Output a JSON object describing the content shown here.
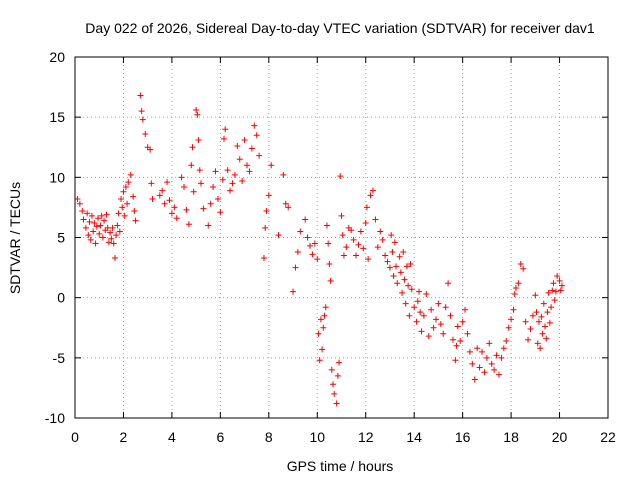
{
  "chart_data": {
    "type": "scatter",
    "title": "Day 022 of 2026, Sidereal Day-to-day VTEC variation (SDTVAR) for receiver dav1",
    "xlabel": "GPS time / hours",
    "ylabel": "SDTVAR / TECUs",
    "xlim": [
      0,
      22
    ],
    "ylim": [
      -10,
      20
    ],
    "xticks": [
      "0",
      "2",
      "4",
      "6",
      "8",
      "10",
      "12",
      "14",
      "16",
      "18",
      "20",
      "22"
    ],
    "yticks": [
      "-10",
      "-5",
      "0",
      "5",
      "10",
      "15",
      "20"
    ],
    "grid": true,
    "marker": "+",
    "series_color": "#ff0000",
    "series": [
      {
        "name": "SDTVAR",
        "points": [
          [
            0.1,
            8.2
          ],
          [
            0.2,
            7.8
          ],
          [
            0.3,
            7.2
          ],
          [
            0.35,
            6.5
          ],
          [
            0.45,
            5.8
          ],
          [
            0.5,
            7.0
          ],
          [
            0.55,
            5.2
          ],
          [
            0.6,
            6.3
          ],
          [
            0.65,
            4.8
          ],
          [
            0.7,
            6.8
          ],
          [
            0.75,
            5.5
          ],
          [
            0.8,
            6.2
          ],
          [
            0.85,
            4.5
          ],
          [
            0.9,
            5.9
          ],
          [
            0.95,
            6.6
          ],
          [
            1.0,
            5.3
          ],
          [
            1.05,
            6.0
          ],
          [
            1.1,
            6.8
          ],
          [
            1.15,
            5.0
          ],
          [
            1.2,
            6.4
          ],
          [
            1.25,
            5.6
          ],
          [
            1.3,
            6.9
          ],
          [
            1.35,
            5.8
          ],
          [
            1.4,
            4.6
          ],
          [
            1.45,
            5.4
          ],
          [
            1.5,
            4.9
          ],
          [
            1.55,
            5.8
          ],
          [
            1.6,
            4.5
          ],
          [
            1.65,
            3.3
          ],
          [
            1.7,
            5.2
          ],
          [
            1.75,
            6.0
          ],
          [
            1.8,
            7.0
          ],
          [
            1.85,
            5.5
          ],
          [
            1.9,
            8.2
          ],
          [
            1.95,
            7.5
          ],
          [
            2.0,
            8.8
          ],
          [
            2.05,
            6.8
          ],
          [
            2.1,
            9.2
          ],
          [
            2.15,
            7.8
          ],
          [
            2.2,
            9.6
          ],
          [
            2.3,
            10.2
          ],
          [
            2.4,
            8.4
          ],
          [
            2.45,
            7.2
          ],
          [
            2.5,
            6.4
          ],
          [
            2.7,
            16.8
          ],
          [
            2.75,
            15.5
          ],
          [
            2.8,
            14.8
          ],
          [
            2.9,
            13.6
          ],
          [
            3.0,
            12.5
          ],
          [
            3.1,
            12.3
          ],
          [
            3.15,
            9.5
          ],
          [
            3.2,
            8.2
          ],
          [
            3.5,
            8.5
          ],
          [
            3.6,
            8.9
          ],
          [
            3.7,
            7.8
          ],
          [
            3.8,
            9.6
          ],
          [
            3.9,
            8.1
          ],
          [
            4.0,
            7.0
          ],
          [
            4.1,
            7.5
          ],
          [
            4.2,
            6.6
          ],
          [
            4.4,
            10.0
          ],
          [
            4.5,
            9.2
          ],
          [
            4.6,
            7.3
          ],
          [
            4.7,
            6.1
          ],
          [
            4.8,
            11.0
          ],
          [
            4.85,
            12.5
          ],
          [
            4.9,
            8.8
          ],
          [
            5.0,
            15.6
          ],
          [
            5.05,
            15.2
          ],
          [
            5.1,
            13.1
          ],
          [
            5.15,
            10.6
          ],
          [
            5.2,
            9.5
          ],
          [
            5.3,
            7.4
          ],
          [
            5.5,
            6.0
          ],
          [
            5.6,
            7.8
          ],
          [
            5.7,
            9.2
          ],
          [
            5.8,
            10.5
          ],
          [
            5.9,
            8.2
          ],
          [
            6.0,
            7.1
          ],
          [
            6.1,
            9.8
          ],
          [
            6.15,
            13.2
          ],
          [
            6.2,
            14.0
          ],
          [
            6.3,
            10.6
          ],
          [
            6.4,
            8.9
          ],
          [
            6.5,
            9.5
          ],
          [
            6.6,
            10.2
          ],
          [
            6.7,
            12.6
          ],
          [
            6.8,
            11.5
          ],
          [
            6.9,
            9.7
          ],
          [
            7.0,
            13.1
          ],
          [
            7.1,
            11.0
          ],
          [
            7.2,
            10.5
          ],
          [
            7.3,
            12.4
          ],
          [
            7.4,
            14.3
          ],
          [
            7.5,
            13.5
          ],
          [
            7.6,
            11.8
          ],
          [
            7.8,
            3.3
          ],
          [
            7.85,
            5.8
          ],
          [
            7.9,
            7.2
          ],
          [
            8.0,
            8.5
          ],
          [
            8.1,
            11.0
          ],
          [
            8.4,
            5.2
          ],
          [
            8.6,
            10.2
          ],
          [
            8.7,
            7.8
          ],
          [
            8.8,
            7.5
          ],
          [
            9.0,
            0.5
          ],
          [
            9.1,
            2.5
          ],
          [
            9.2,
            3.8
          ],
          [
            9.3,
            5.5
          ],
          [
            9.5,
            6.5
          ],
          [
            9.6,
            5.0
          ],
          [
            9.7,
            4.3
          ],
          [
            9.8,
            3.6
          ],
          [
            9.9,
            4.5
          ],
          [
            10.0,
            3.2
          ],
          [
            10.05,
            -3.0
          ],
          [
            10.1,
            -5.2
          ],
          [
            10.15,
            -1.8
          ],
          [
            10.2,
            -4.3
          ],
          [
            10.25,
            -2.5
          ],
          [
            10.3,
            -1.5
          ],
          [
            10.35,
            -0.8
          ],
          [
            10.4,
            6.0
          ],
          [
            10.45,
            4.5
          ],
          [
            10.5,
            2.8
          ],
          [
            10.55,
            1.4
          ],
          [
            10.6,
            -6.0
          ],
          [
            10.65,
            -7.2
          ],
          [
            10.7,
            -8.0
          ],
          [
            10.8,
            -8.8
          ],
          [
            10.85,
            -6.5
          ],
          [
            10.9,
            -5.4
          ],
          [
            10.95,
            10.1
          ],
          [
            11.0,
            6.8
          ],
          [
            11.05,
            5.2
          ],
          [
            11.1,
            3.5
          ],
          [
            11.2,
            4.2
          ],
          [
            11.3,
            5.8
          ],
          [
            11.4,
            5.6
          ],
          [
            11.5,
            4.8
          ],
          [
            11.6,
            3.5
          ],
          [
            11.7,
            4.4
          ],
          [
            11.8,
            5.5
          ],
          [
            11.9,
            4.1
          ],
          [
            12.0,
            6.2
          ],
          [
            12.05,
            7.5
          ],
          [
            12.1,
            3.2
          ],
          [
            12.2,
            8.5
          ],
          [
            12.3,
            8.9
          ],
          [
            12.4,
            6.5
          ],
          [
            12.5,
            4.2
          ],
          [
            12.6,
            5.5
          ],
          [
            12.7,
            4.8
          ],
          [
            12.8,
            3.5
          ],
          [
            12.9,
            3.0
          ],
          [
            13.0,
            2.5
          ],
          [
            13.05,
            5.2
          ],
          [
            13.1,
            3.8
          ],
          [
            13.15,
            1.8
          ],
          [
            13.2,
            4.6
          ],
          [
            13.25,
            2.6
          ],
          [
            13.3,
            1.2
          ],
          [
            13.4,
            3.4
          ],
          [
            13.45,
            2.1
          ],
          [
            13.5,
            0.4
          ],
          [
            13.55,
            3.8
          ],
          [
            13.6,
            1.5
          ],
          [
            13.65,
            -0.5
          ],
          [
            13.7,
            2.6
          ],
          [
            13.75,
            1.0
          ],
          [
            13.8,
            -1.5
          ],
          [
            13.85,
            2.8
          ],
          [
            13.9,
            0.7
          ],
          [
            14.0,
            -0.8
          ],
          [
            14.1,
            -2.0
          ],
          [
            14.15,
            -0.3
          ],
          [
            14.2,
            0.5
          ],
          [
            14.25,
            -1.2
          ],
          [
            14.3,
            -2.8
          ],
          [
            14.4,
            -1.5
          ],
          [
            14.5,
            0.3
          ],
          [
            14.6,
            -3.2
          ],
          [
            14.7,
            -1.0
          ],
          [
            14.8,
            -2.5
          ],
          [
            14.9,
            -1.8
          ],
          [
            15.0,
            -0.5
          ],
          [
            15.1,
            -2.2
          ],
          [
            15.2,
            -3.0
          ],
          [
            15.3,
            -0.8
          ],
          [
            15.4,
            1.2
          ],
          [
            15.5,
            -1.5
          ],
          [
            15.6,
            -3.5
          ],
          [
            15.7,
            -5.2
          ],
          [
            15.75,
            -4.0
          ],
          [
            15.8,
            -2.4
          ],
          [
            15.9,
            -3.6
          ],
          [
            16.0,
            -2.0
          ],
          [
            16.1,
            -1.0
          ],
          [
            16.2,
            -3.0
          ],
          [
            16.3,
            -4.5
          ],
          [
            16.4,
            -5.5
          ],
          [
            16.5,
            -6.8
          ],
          [
            16.6,
            -4.2
          ],
          [
            16.7,
            -5.8
          ],
          [
            16.8,
            -4.5
          ],
          [
            16.9,
            -6.2
          ],
          [
            17.0,
            -5.0
          ],
          [
            17.1,
            -3.8
          ],
          [
            17.2,
            -5.5
          ],
          [
            17.3,
            -6.0
          ],
          [
            17.4,
            -4.8
          ],
          [
            17.5,
            -6.4
          ],
          [
            17.6,
            -5.0
          ],
          [
            17.7,
            -4.2
          ],
          [
            17.8,
            -3.6
          ],
          [
            17.9,
            -2.5
          ],
          [
            18.0,
            -1.8
          ],
          [
            18.1,
            -1.0
          ],
          [
            18.15,
            0.3
          ],
          [
            18.2,
            0.8
          ],
          [
            18.3,
            1.2
          ],
          [
            18.4,
            2.8
          ],
          [
            18.5,
            2.4
          ],
          [
            18.6,
            -2.0
          ],
          [
            18.7,
            -3.5
          ],
          [
            18.8,
            -2.6
          ],
          [
            18.9,
            -1.5
          ],
          [
            19.0,
            0.2
          ],
          [
            19.05,
            -1.2
          ],
          [
            19.1,
            -3.8
          ],
          [
            19.15,
            -2.0
          ],
          [
            19.2,
            -4.2
          ],
          [
            19.25,
            -1.6
          ],
          [
            19.3,
            -3.0
          ],
          [
            19.35,
            -0.5
          ],
          [
            19.4,
            -2.4
          ],
          [
            19.45,
            -3.4
          ],
          [
            19.5,
            -1.2
          ],
          [
            19.55,
            0.4
          ],
          [
            19.6,
            -2.1
          ],
          [
            19.65,
            -0.8
          ],
          [
            19.7,
            0.6
          ],
          [
            19.75,
            1.2
          ],
          [
            19.8,
            -0.2
          ],
          [
            19.85,
            0.5
          ],
          [
            19.9,
            1.8
          ],
          [
            20.0,
            1.4
          ],
          [
            20.05,
            0.6
          ],
          [
            20.1,
            1.0
          ]
        ]
      }
    ]
  }
}
